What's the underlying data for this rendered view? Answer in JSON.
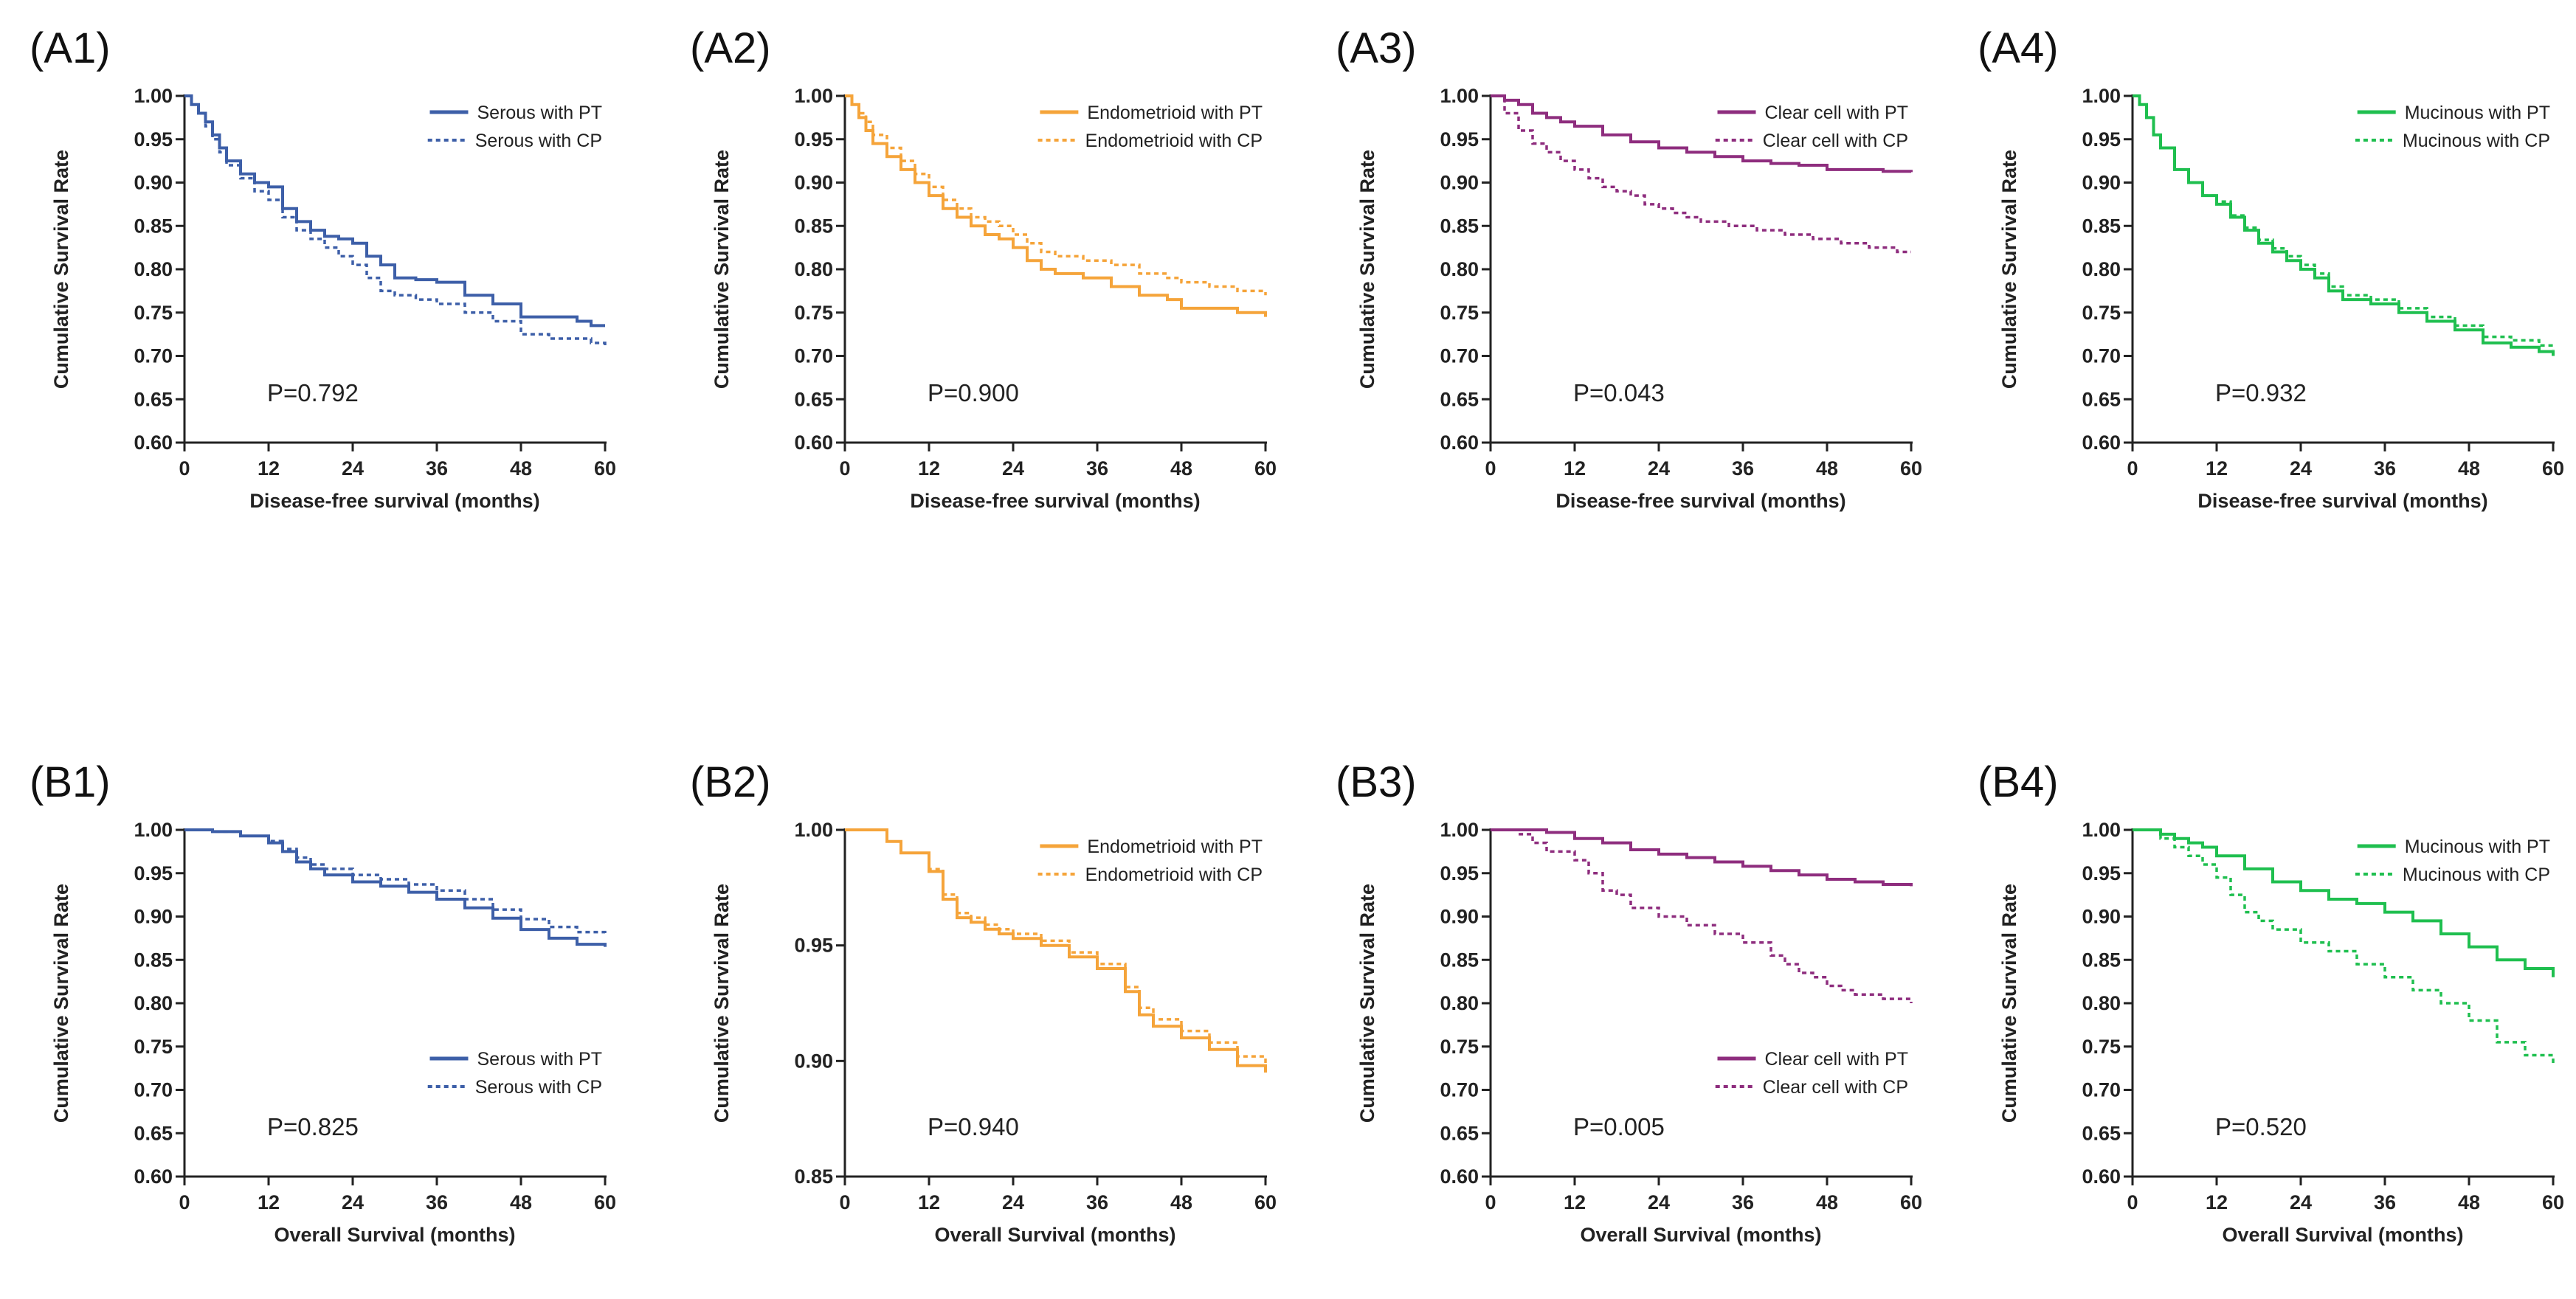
{
  "chart_data": [
    {
      "id": "A1",
      "panel_label": "(A1)",
      "type": "line",
      "color": "#3d5fa8",
      "xlabel": "Disease-free survival (months)",
      "ylabel": "Cumulative Survival Rate",
      "xlim": [
        0,
        60
      ],
      "ylim": [
        0.6,
        1.0
      ],
      "xticks": [
        "0",
        "12",
        "24",
        "36",
        "48",
        "60"
      ],
      "yticks": [
        "0.60",
        "0.65",
        "0.70",
        "0.75",
        "0.80",
        "0.85",
        "0.90",
        "0.95",
        "1.00"
      ],
      "legend_position": "top-right",
      "annotation": "P=0.792",
      "series": [
        {
          "name": "Serous with PT",
          "style": "solid",
          "x": [
            0,
            1,
            2,
            3,
            4,
            5,
            6,
            8,
            10,
            12,
            14,
            16,
            18,
            20,
            22,
            24,
            26,
            28,
            30,
            33,
            36,
            40,
            44,
            48,
            52,
            56,
            58,
            60
          ],
          "y": [
            1.0,
            0.99,
            0.98,
            0.97,
            0.955,
            0.94,
            0.925,
            0.91,
            0.9,
            0.895,
            0.87,
            0.855,
            0.845,
            0.838,
            0.835,
            0.83,
            0.815,
            0.805,
            0.79,
            0.788,
            0.785,
            0.77,
            0.76,
            0.745,
            0.745,
            0.74,
            0.735,
            0.735
          ]
        },
        {
          "name": "Serous with CP",
          "style": "dotted",
          "x": [
            0,
            1,
            2,
            3,
            4,
            5,
            6,
            8,
            10,
            12,
            14,
            16,
            18,
            20,
            22,
            24,
            26,
            28,
            30,
            33,
            36,
            40,
            44,
            48,
            52,
            56,
            58,
            60
          ],
          "y": [
            1.0,
            0.99,
            0.98,
            0.965,
            0.95,
            0.935,
            0.92,
            0.905,
            0.89,
            0.88,
            0.86,
            0.845,
            0.835,
            0.825,
            0.815,
            0.805,
            0.79,
            0.775,
            0.77,
            0.765,
            0.76,
            0.75,
            0.74,
            0.725,
            0.72,
            0.72,
            0.715,
            0.71
          ]
        }
      ]
    },
    {
      "id": "A2",
      "panel_label": "(A2)",
      "type": "line",
      "color": "#f5a43a",
      "xlabel": "Disease-free survival (months)",
      "ylabel": "Cumulative Survival Rate",
      "xlim": [
        0,
        60
      ],
      "ylim": [
        0.6,
        1.0
      ],
      "xticks": [
        "0",
        "12",
        "24",
        "36",
        "48",
        "60"
      ],
      "yticks": [
        "0.60",
        "0.65",
        "0.70",
        "0.75",
        "0.80",
        "0.85",
        "0.90",
        "0.95",
        "1.00"
      ],
      "legend_position": "top-right",
      "annotation": "P=0.900",
      "series": [
        {
          "name": "Endometrioid with PT",
          "style": "solid",
          "x": [
            0,
            1,
            2,
            3,
            4,
            6,
            8,
            10,
            12,
            14,
            16,
            18,
            20,
            22,
            24,
            26,
            28,
            30,
            34,
            38,
            42,
            46,
            48,
            52,
            56,
            60
          ],
          "y": [
            1.0,
            0.99,
            0.975,
            0.96,
            0.945,
            0.93,
            0.915,
            0.9,
            0.885,
            0.87,
            0.86,
            0.85,
            0.84,
            0.835,
            0.825,
            0.81,
            0.8,
            0.795,
            0.79,
            0.78,
            0.77,
            0.765,
            0.755,
            0.755,
            0.75,
            0.745
          ]
        },
        {
          "name": "Endometrioid with CP",
          "style": "dotted",
          "x": [
            0,
            1,
            2,
            3,
            4,
            6,
            8,
            10,
            12,
            14,
            16,
            18,
            20,
            22,
            24,
            26,
            28,
            30,
            34,
            38,
            42,
            46,
            48,
            52,
            56,
            60
          ],
          "y": [
            1.0,
            0.99,
            0.98,
            0.97,
            0.955,
            0.94,
            0.925,
            0.91,
            0.895,
            0.88,
            0.87,
            0.86,
            0.855,
            0.85,
            0.84,
            0.83,
            0.82,
            0.815,
            0.81,
            0.805,
            0.795,
            0.79,
            0.785,
            0.78,
            0.775,
            0.77
          ]
        }
      ]
    },
    {
      "id": "A3",
      "panel_label": "(A3)",
      "type": "line",
      "color": "#8e2d7e",
      "xlabel": "Disease-free survival (months)",
      "ylabel": "Cumulative Survival Rate",
      "xlim": [
        0,
        60
      ],
      "ylim": [
        0.6,
        1.0
      ],
      "xticks": [
        "0",
        "12",
        "24",
        "36",
        "48",
        "60"
      ],
      "yticks": [
        "0.60",
        "0.65",
        "0.70",
        "0.75",
        "0.80",
        "0.85",
        "0.90",
        "0.95",
        "1.00"
      ],
      "legend_position": "top-right",
      "annotation": "P=0.043",
      "series": [
        {
          "name": "Clear cell with PT",
          "style": "solid",
          "x": [
            0,
            2,
            4,
            6,
            8,
            10,
            12,
            16,
            20,
            24,
            28,
            32,
            36,
            40,
            44,
            48,
            52,
            56,
            60
          ],
          "y": [
            1.0,
            0.995,
            0.99,
            0.98,
            0.975,
            0.97,
            0.965,
            0.955,
            0.947,
            0.94,
            0.935,
            0.93,
            0.925,
            0.922,
            0.92,
            0.915,
            0.915,
            0.913,
            0.912
          ]
        },
        {
          "name": "Clear cell with CP",
          "style": "dotted",
          "x": [
            0,
            2,
            4,
            6,
            8,
            10,
            12,
            14,
            16,
            18,
            20,
            22,
            24,
            26,
            28,
            30,
            34,
            38,
            42,
            46,
            50,
            54,
            58,
            60
          ],
          "y": [
            1.0,
            0.98,
            0.96,
            0.945,
            0.935,
            0.925,
            0.915,
            0.905,
            0.895,
            0.89,
            0.885,
            0.875,
            0.87,
            0.865,
            0.86,
            0.855,
            0.85,
            0.845,
            0.84,
            0.835,
            0.83,
            0.825,
            0.82,
            0.82
          ]
        }
      ]
    },
    {
      "id": "A4",
      "panel_label": "(A4)",
      "type": "line",
      "color": "#1fbf4f",
      "xlabel": "Disease-free survival (months)",
      "ylabel": "Cumulative Survival Rate",
      "xlim": [
        0,
        60
      ],
      "ylim": [
        0.6,
        1.0
      ],
      "xticks": [
        "0",
        "12",
        "24",
        "36",
        "48",
        "60"
      ],
      "yticks": [
        "0.60",
        "0.65",
        "0.70",
        "0.75",
        "0.80",
        "0.85",
        "0.90",
        "0.95",
        "1.00"
      ],
      "legend_position": "top-right",
      "annotation": "P=0.932",
      "series": [
        {
          "name": "Mucinous with PT",
          "style": "solid",
          "x": [
            0,
            1,
            2,
            3,
            4,
            6,
            8,
            10,
            12,
            14,
            16,
            18,
            20,
            22,
            24,
            26,
            28,
            30,
            34,
            38,
            42,
            46,
            50,
            54,
            58,
            60
          ],
          "y": [
            1.0,
            0.99,
            0.975,
            0.955,
            0.94,
            0.915,
            0.9,
            0.885,
            0.875,
            0.86,
            0.845,
            0.83,
            0.82,
            0.81,
            0.8,
            0.79,
            0.775,
            0.765,
            0.76,
            0.75,
            0.74,
            0.73,
            0.715,
            0.71,
            0.705,
            0.7
          ]
        },
        {
          "name": "Mucinous with CP",
          "style": "dotted",
          "x": [
            0,
            1,
            2,
            3,
            4,
            6,
            8,
            10,
            12,
            14,
            16,
            18,
            20,
            22,
            24,
            26,
            28,
            30,
            34,
            38,
            42,
            46,
            50,
            54,
            58,
            60
          ],
          "y": [
            1.0,
            0.99,
            0.975,
            0.955,
            0.94,
            0.915,
            0.9,
            0.885,
            0.878,
            0.862,
            0.848,
            0.834,
            0.824,
            0.815,
            0.805,
            0.795,
            0.78,
            0.77,
            0.765,
            0.755,
            0.745,
            0.735,
            0.722,
            0.718,
            0.712,
            0.708
          ]
        }
      ]
    },
    {
      "id": "B1",
      "panel_label": "(B1)",
      "type": "line",
      "color": "#3d5fa8",
      "xlabel": "Overall Survival (months)",
      "ylabel": "Cumulative Survival Rate",
      "xlim": [
        0,
        60
      ],
      "ylim": [
        0.6,
        1.0
      ],
      "xticks": [
        "0",
        "12",
        "24",
        "36",
        "48",
        "60"
      ],
      "yticks": [
        "0.60",
        "0.65",
        "0.70",
        "0.75",
        "0.80",
        "0.85",
        "0.90",
        "0.95",
        "1.00"
      ],
      "legend_position": "bottom-right",
      "annotation": "P=0.825",
      "series": [
        {
          "name": "Serous with PT",
          "style": "solid",
          "x": [
            0,
            4,
            8,
            12,
            14,
            16,
            18,
            20,
            24,
            28,
            32,
            36,
            40,
            44,
            48,
            52,
            56,
            60
          ],
          "y": [
            1.0,
            0.998,
            0.993,
            0.985,
            0.975,
            0.963,
            0.955,
            0.948,
            0.94,
            0.935,
            0.928,
            0.92,
            0.91,
            0.898,
            0.885,
            0.875,
            0.868,
            0.865
          ]
        },
        {
          "name": "Serous with CP",
          "style": "dotted",
          "x": [
            0,
            4,
            8,
            12,
            14,
            16,
            18,
            20,
            24,
            28,
            32,
            36,
            40,
            44,
            48,
            52,
            56,
            60
          ],
          "y": [
            1.0,
            0.998,
            0.993,
            0.987,
            0.978,
            0.968,
            0.96,
            0.955,
            0.948,
            0.943,
            0.937,
            0.93,
            0.92,
            0.908,
            0.897,
            0.888,
            0.882,
            0.88
          ]
        }
      ]
    },
    {
      "id": "B2",
      "panel_label": "(B2)",
      "type": "line",
      "color": "#f5a43a",
      "xlabel": "Overall Survival (months)",
      "ylabel": "Cumulative Survival Rate",
      "xlim": [
        0,
        60
      ],
      "ylim": [
        0.85,
        1.0
      ],
      "xticks": [
        "0",
        "12",
        "24",
        "36",
        "48",
        "60"
      ],
      "yticks": [
        "0.85",
        "0.90",
        "0.95",
        "1.00"
      ],
      "legend_position": "top-right",
      "annotation": "P=0.940",
      "series": [
        {
          "name": "Endometrioid with PT",
          "style": "solid",
          "x": [
            0,
            3,
            6,
            8,
            10,
            12,
            14,
            16,
            18,
            20,
            22,
            24,
            28,
            32,
            36,
            40,
            42,
            44,
            48,
            52,
            56,
            60
          ],
          "y": [
            1.0,
            1.0,
            0.995,
            0.99,
            0.99,
            0.982,
            0.97,
            0.962,
            0.96,
            0.957,
            0.955,
            0.953,
            0.95,
            0.945,
            0.94,
            0.93,
            0.92,
            0.915,
            0.91,
            0.905,
            0.898,
            0.895
          ]
        },
        {
          "name": "Endometrioid with CP",
          "style": "dotted",
          "x": [
            0,
            3,
            6,
            8,
            10,
            12,
            14,
            16,
            18,
            20,
            22,
            24,
            28,
            32,
            36,
            40,
            42,
            44,
            48,
            52,
            56,
            60
          ],
          "y": [
            1.0,
            1.0,
            0.995,
            0.99,
            0.99,
            0.983,
            0.972,
            0.964,
            0.962,
            0.959,
            0.957,
            0.955,
            0.952,
            0.947,
            0.942,
            0.932,
            0.923,
            0.918,
            0.913,
            0.908,
            0.902,
            0.898
          ]
        }
      ]
    },
    {
      "id": "B3",
      "panel_label": "(B3)",
      "type": "line",
      "color": "#8e2d7e",
      "xlabel": "Overall Survival (months)",
      "ylabel": "Cumulative Survival Rate",
      "xlim": [
        0,
        60
      ],
      "ylim": [
        0.6,
        1.0
      ],
      "xticks": [
        "0",
        "12",
        "24",
        "36",
        "48",
        "60"
      ],
      "yticks": [
        "0.60",
        "0.65",
        "0.70",
        "0.75",
        "0.80",
        "0.85",
        "0.90",
        "0.95",
        "1.00"
      ],
      "legend_position": "bottom-right",
      "annotation": "P=0.005",
      "series": [
        {
          "name": "Clear cell with PT",
          "style": "solid",
          "x": [
            0,
            4,
            8,
            12,
            16,
            20,
            24,
            28,
            32,
            36,
            40,
            44,
            48,
            52,
            56,
            60
          ],
          "y": [
            1.0,
            1.0,
            0.997,
            0.99,
            0.985,
            0.977,
            0.972,
            0.968,
            0.963,
            0.958,
            0.953,
            0.948,
            0.943,
            0.94,
            0.937,
            0.935
          ]
        },
        {
          "name": "Clear cell with CP",
          "style": "dotted",
          "x": [
            0,
            4,
            6,
            8,
            10,
            12,
            14,
            16,
            18,
            20,
            24,
            28,
            32,
            36,
            40,
            42,
            44,
            46,
            48,
            50,
            52,
            56,
            60
          ],
          "y": [
            1.0,
            0.995,
            0.985,
            0.975,
            0.975,
            0.965,
            0.95,
            0.93,
            0.925,
            0.91,
            0.9,
            0.89,
            0.88,
            0.87,
            0.855,
            0.845,
            0.835,
            0.83,
            0.82,
            0.815,
            0.81,
            0.805,
            0.8
          ]
        }
      ]
    },
    {
      "id": "B4",
      "panel_label": "(B4)",
      "type": "line",
      "color": "#1fbf4f",
      "xlabel": "Overall Survival (months)",
      "ylabel": "Cumulative Survival Rate",
      "xlim": [
        0,
        60
      ],
      "ylim": [
        0.6,
        1.0
      ],
      "xticks": [
        "0",
        "12",
        "24",
        "36",
        "48",
        "60"
      ],
      "yticks": [
        "0.60",
        "0.65",
        "0.70",
        "0.75",
        "0.80",
        "0.85",
        "0.90",
        "0.95",
        "1.00"
      ],
      "legend_position": "top-right",
      "annotation": "P=0.520",
      "series": [
        {
          "name": "Mucinous with PT",
          "style": "solid",
          "x": [
            0,
            4,
            6,
            8,
            10,
            12,
            16,
            20,
            24,
            28,
            32,
            36,
            40,
            44,
            48,
            52,
            56,
            60
          ],
          "y": [
            1.0,
            0.995,
            0.99,
            0.985,
            0.98,
            0.97,
            0.955,
            0.94,
            0.93,
            0.92,
            0.915,
            0.905,
            0.895,
            0.88,
            0.865,
            0.85,
            0.84,
            0.83
          ]
        },
        {
          "name": "Mucinous with CP",
          "style": "dotted",
          "x": [
            0,
            4,
            6,
            8,
            10,
            12,
            14,
            16,
            18,
            20,
            24,
            28,
            32,
            36,
            40,
            44,
            48,
            52,
            56,
            60
          ],
          "y": [
            1.0,
            0.99,
            0.98,
            0.97,
            0.96,
            0.945,
            0.925,
            0.905,
            0.895,
            0.885,
            0.87,
            0.86,
            0.845,
            0.83,
            0.815,
            0.8,
            0.78,
            0.755,
            0.74,
            0.73
          ]
        }
      ]
    }
  ]
}
